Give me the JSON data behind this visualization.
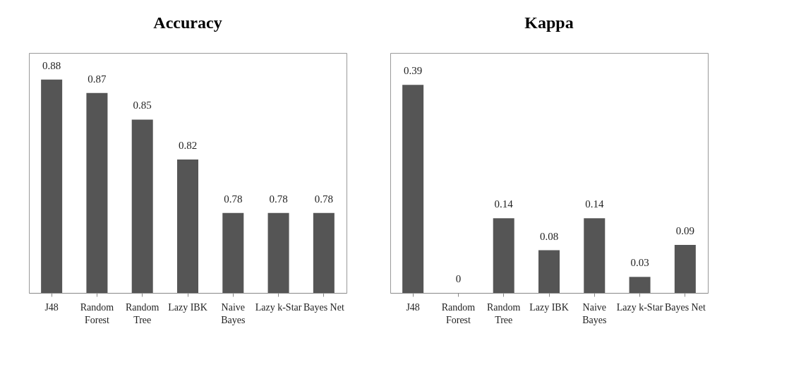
{
  "chart_data": [
    {
      "type": "bar",
      "title": "Accuracy",
      "categories": [
        "J48",
        "Random\nForest",
        "Random\nTree",
        "Lazy IBK",
        "Naive\nBayes",
        "Lazy k-Star",
        "Bayes Net"
      ],
      "values": [
        0.88,
        0.87,
        0.85,
        0.82,
        0.78,
        0.78,
        0.78
      ],
      "color": "#555555",
      "ylim": [
        0.72,
        0.9
      ],
      "tick_labels": "x",
      "data_labels": true,
      "grid": false
    },
    {
      "type": "bar",
      "title": "Kappa",
      "categories": [
        "J48",
        "Random\nForest",
        "Random\nTree",
        "Lazy IBK",
        "Naive\nBayes",
        "Lazy k-Star",
        "Bayes Net"
      ],
      "values": [
        0.39,
        0,
        0.14,
        0.08,
        0.14,
        0.03,
        0.09
      ],
      "color": "#555555",
      "ylim": [
        0,
        0.45
      ],
      "tick_labels": "x",
      "data_labels": true,
      "grid": false
    }
  ]
}
